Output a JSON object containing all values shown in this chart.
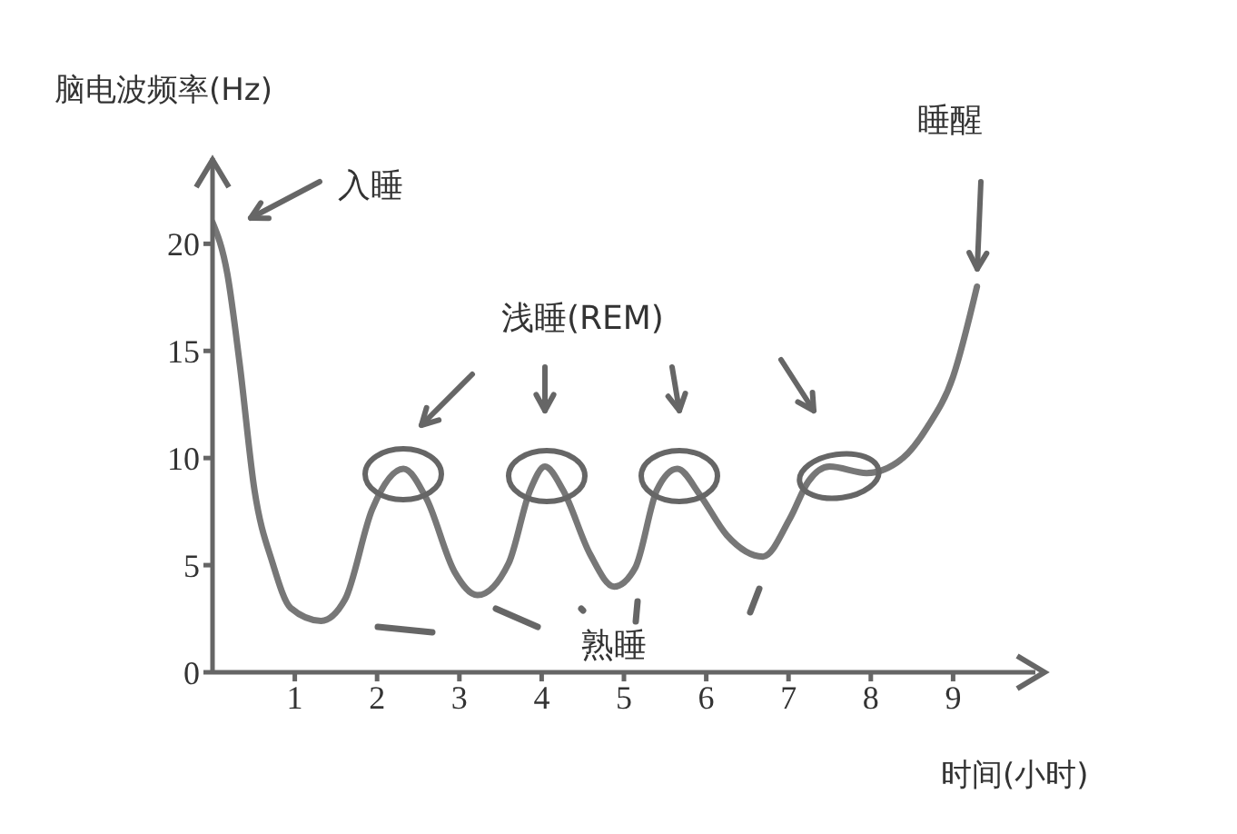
{
  "chart_data": {
    "type": "line",
    "xlabel": "时间(小时)",
    "ylabel": "脑电波频率(Hz)",
    "annotations": [
      "入睡",
      "浅睡(REM)",
      "熟睡",
      "睡醒"
    ],
    "xlim": [
      0,
      10
    ],
    "ylim": [
      0,
      24
    ],
    "xticks": [
      1,
      2,
      3,
      4,
      5,
      6,
      7,
      8,
      9
    ],
    "yticks": [
      0,
      5,
      10,
      15,
      20
    ],
    "grid": false,
    "legend": false,
    "marker": "none",
    "line_style": "solid",
    "series": [
      {
        "color": "#777777",
        "x": [
          0,
          0.18,
          0.33,
          0.51,
          0.73,
          0.95,
          1.32,
          1.61,
          1.94,
          2.32,
          2.6,
          2.94,
          3.22,
          3.6,
          3.86,
          4.04,
          4.26,
          4.59,
          4.88,
          5.14,
          5.4,
          5.65,
          5.92,
          6.25,
          6.69,
          7.02,
          7.24,
          7.5,
          7.95,
          8.39,
          8.68,
          9.0,
          9.29
        ],
        "values": [
          21,
          18.6,
          14.4,
          8.5,
          5.1,
          3.0,
          2.4,
          3.4,
          7.6,
          9.5,
          8.1,
          4.7,
          3.6,
          5.1,
          8.5,
          9.6,
          8.5,
          5.5,
          4.0,
          4.9,
          8.5,
          9.5,
          8.3,
          6.4,
          5.4,
          7.2,
          8.9,
          9.6,
          9.3,
          10.0,
          11.4,
          13.8,
          18.0
        ]
      }
    ]
  }
}
